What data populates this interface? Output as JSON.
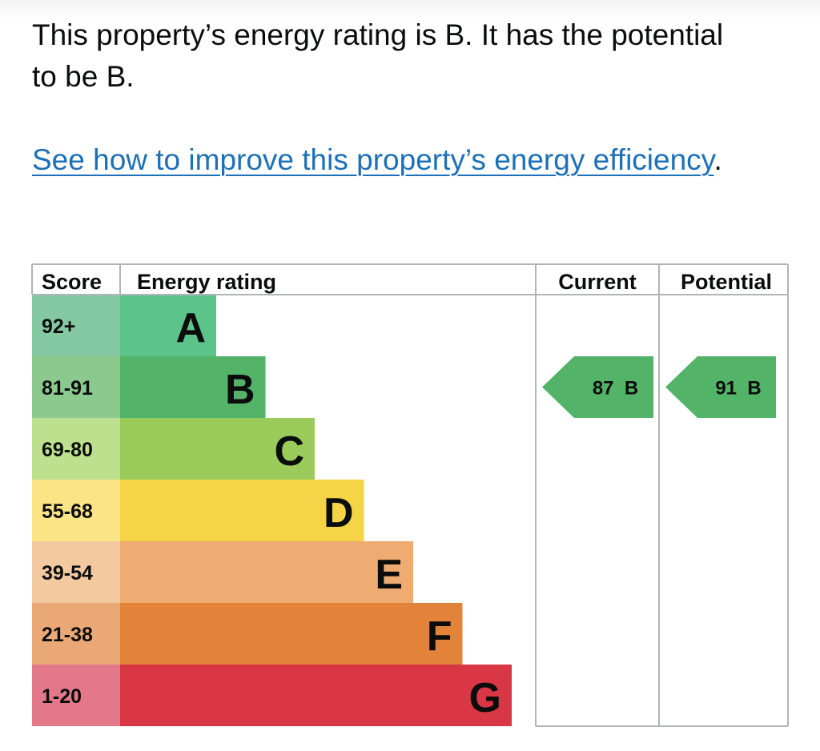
{
  "summary": {
    "text": "This property’s energy rating is B. It has the potential to be B."
  },
  "improve": {
    "link_text": "See how to improve this property’s energy efficiency",
    "trailing": "."
  },
  "table": {
    "headers": {
      "score": "Score",
      "rating": "Energy rating",
      "current": "Current",
      "potential": "Potential"
    },
    "bands": [
      {
        "score": "92+",
        "letter": "A",
        "color": "#5cc38a",
        "score_bg": "#85c9a3"
      },
      {
        "score": "81-91",
        "letter": "B",
        "color": "#53b369",
        "score_bg": "#8cc98f"
      },
      {
        "score": "69-80",
        "letter": "C",
        "color": "#9bcb5a",
        "score_bg": "#bde08e"
      },
      {
        "score": "55-68",
        "letter": "D",
        "color": "#f5d547",
        "score_bg": "#fbe486"
      },
      {
        "score": "39-54",
        "letter": "E",
        "color": "#eeac72",
        "score_bg": "#f3c9a0"
      },
      {
        "score": "21-38",
        "letter": "F",
        "color": "#e3833a",
        "score_bg": "#eba877"
      },
      {
        "score": "1-20",
        "letter": "G",
        "color": "#d93646",
        "score_bg": "#e2788a"
      }
    ],
    "current": {
      "label": "87  B",
      "band_index": 1,
      "color": "#53b369"
    },
    "potential": {
      "label": "91  B",
      "band_index": 1,
      "color": "#53b369"
    }
  }
}
